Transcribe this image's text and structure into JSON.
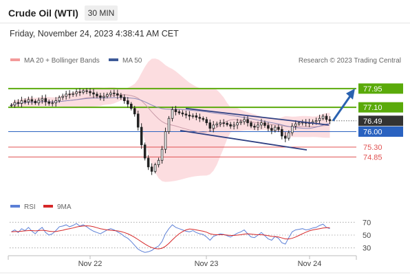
{
  "header": {
    "title": "Crude Oil (WTI)",
    "timeframe": "30 MIN",
    "datetime": "Friday, November 24, 2023 4:38:41 AM CET"
  },
  "legend": {
    "ma20": "MA 20 + Bollinger Bands",
    "ma50": "MA 50",
    "credit": "Research © 2023 Trading Central",
    "rsi": "RSI",
    "rsi_ma": "9MA"
  },
  "colors": {
    "green": "#5aaa0a",
    "blue": "#2a62c0",
    "red": "#e05050",
    "dark": "#333333",
    "candle": "#222222",
    "bollinger": "#fbd7da",
    "ma20": "#c89aa8",
    "ma50": "#8a88b8",
    "arrow": "#2a62b0",
    "rsi_line": "#5b7fd6",
    "rsi_ma_line": "#d62728"
  },
  "chart_data": [
    {
      "type": "candlestick",
      "title": "Crude Oil (WTI)",
      "timeframe": "30 MIN",
      "x_labels": [
        "Nov 22",
        "Nov 23",
        "Nov 24"
      ],
      "ylim": [
        73.4,
        78.6
      ],
      "levels": [
        {
          "label": "77.95",
          "value": 77.95,
          "kind": "resistance",
          "color": "#5aaa0a"
        },
        {
          "label": "77.10",
          "value": 77.1,
          "kind": "resistance",
          "color": "#5aaa0a"
        },
        {
          "label": "76.49",
          "value": 76.49,
          "kind": "current",
          "color": "#333333"
        },
        {
          "label": "76.00",
          "value": 76.0,
          "kind": "pivot",
          "color": "#2a62c0"
        },
        {
          "label": "75.30",
          "value": 75.3,
          "kind": "support",
          "color": "#e05050"
        },
        {
          "label": "74.85",
          "value": 74.85,
          "kind": "support",
          "color": "#e05050"
        }
      ],
      "close_series": [
        77.2,
        77.32,
        77.28,
        77.4,
        77.35,
        77.45,
        77.38,
        77.3,
        77.42,
        77.5,
        77.35,
        77.28,
        77.3,
        77.4,
        77.55,
        77.6,
        77.7,
        77.68,
        77.72,
        77.8,
        77.78,
        77.85,
        77.82,
        77.76,
        77.7,
        77.62,
        77.55,
        77.6,
        77.68,
        77.75,
        77.72,
        77.65,
        77.55,
        77.4,
        77.25,
        77.05,
        76.8,
        76.2,
        75.4,
        74.8,
        74.4,
        74.2,
        74.5,
        74.7,
        75.2,
        76.0,
        76.6,
        77.0,
        76.9,
        76.85,
        76.8,
        76.75,
        76.7,
        76.72,
        76.65,
        76.6,
        76.55,
        76.4,
        76.15,
        76.3,
        76.35,
        76.4,
        76.38,
        76.32,
        76.25,
        76.3,
        76.4,
        76.45,
        76.55,
        76.4,
        76.25,
        76.2,
        76.3,
        76.4,
        76.28,
        76.15,
        76.05,
        76.2,
        76.1,
        75.8,
        75.7,
        75.95,
        76.25,
        76.35,
        76.4,
        76.42,
        76.38,
        76.4,
        76.45,
        76.5,
        76.6,
        76.7,
        76.55,
        76.49
      ],
      "projection": {
        "from": 76.49,
        "to": 77.95
      }
    },
    {
      "type": "line",
      "series": [
        {
          "name": "RSI"
        },
        {
          "name": "9MA"
        }
      ],
      "ylim": [
        20,
        80
      ],
      "y_ticks": [
        70,
        50,
        30
      ],
      "rsi": [
        55,
        58,
        54,
        60,
        57,
        62,
        56,
        52,
        58,
        62,
        54,
        50,
        52,
        57,
        63,
        64,
        66,
        63,
        65,
        68,
        64,
        66,
        63,
        59,
        56,
        54,
        52,
        55,
        58,
        60,
        58,
        55,
        52,
        48,
        45,
        40,
        34,
        28,
        25,
        23,
        24,
        26,
        30,
        33,
        40,
        52,
        60,
        66,
        62,
        60,
        58,
        56,
        55,
        57,
        54,
        52,
        51,
        47,
        42,
        48,
        50,
        52,
        51,
        49,
        47,
        50,
        53,
        55,
        58,
        52,
        47,
        46,
        50,
        54,
        49,
        44,
        42,
        48,
        45,
        38,
        36,
        46,
        55,
        58,
        59,
        60,
        58,
        59,
        61,
        62,
        65,
        67,
        62,
        60
      ],
      "rsi_ma": [
        55,
        55.5,
        55.5,
        56,
        56.5,
        57,
        57,
        56.5,
        57,
        57.5,
        57,
        56,
        55.5,
        55.5,
        56.5,
        57.5,
        59,
        60,
        61,
        62.5,
        63.5,
        64,
        64.5,
        64,
        63,
        61.5,
        60,
        59,
        58,
        57.5,
        57,
        56.5,
        55.5,
        54,
        52,
        49.5,
        46.5,
        43,
        39.5,
        36,
        33,
        30.5,
        29,
        28.5,
        29.5,
        32.5,
        37,
        42.5,
        47.5,
        52,
        55.5,
        58,
        59.5,
        59,
        58,
        57,
        56,
        54.5,
        52,
        51,
        50.5,
        50.5,
        50.5,
        50,
        49.5,
        49.5,
        50,
        50.5,
        51.5,
        52,
        51.5,
        51,
        50.5,
        50.5,
        50,
        49,
        48,
        47.5,
        47,
        45.5,
        44,
        44,
        45,
        47,
        49.5,
        52,
        54.5,
        56.5,
        58,
        59,
        60,
        61,
        61.5,
        61.5
      ]
    }
  ]
}
